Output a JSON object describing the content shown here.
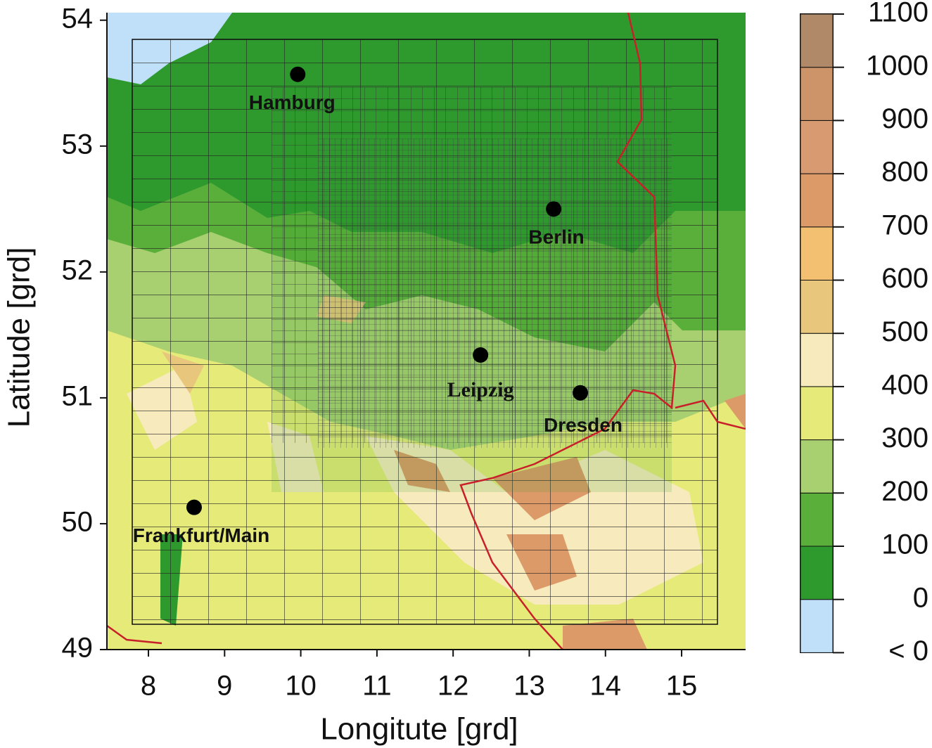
{
  "chart_data": {
    "type": "map",
    "xlabel": "Longitute [grd]",
    "ylabel": "Latitude [grd]",
    "xlim": [
      7.455,
      15.84
    ],
    "ylim": [
      49,
      54.06
    ],
    "xticks": [
      8,
      9,
      10,
      11,
      12,
      13,
      14,
      15
    ],
    "yticks": [
      49,
      50,
      51,
      52,
      53,
      54
    ],
    "cities": [
      {
        "name": "Hamburg",
        "lon": 9.96,
        "lat": 53.57
      },
      {
        "name": "Berlin",
        "lon": 13.32,
        "lat": 52.5
      },
      {
        "name": "Leipzig",
        "lon": 12.36,
        "lat": 51.34
      },
      {
        "name": "Dresden",
        "lon": 13.67,
        "lat": 51.04
      },
      {
        "name": "Frankfurt/Main",
        "lon": 8.6,
        "lat": 50.13
      }
    ],
    "colorbar": {
      "ticks": [
        0,
        100,
        200,
        300,
        400,
        500,
        600,
        700,
        800,
        900,
        1000,
        1100
      ],
      "below_label": "< 0",
      "below_color": "#bfe0f8",
      "colors": [
        "#2e9a2e",
        "#5aae3a",
        "#a8d070",
        "#e6ea78",
        "#f7eabd",
        "#e8c67c",
        "#f2c070",
        "#dc9a68",
        "#d89a70",
        "#cc9468",
        "#b08a68"
      ]
    }
  }
}
